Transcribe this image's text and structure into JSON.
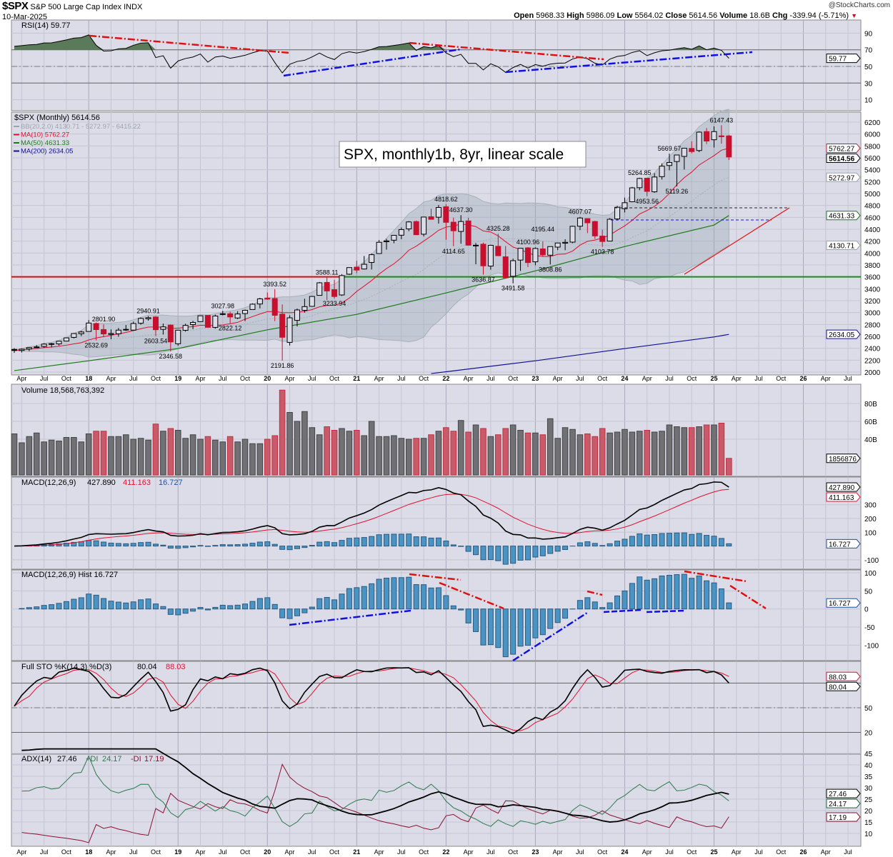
{
  "header": {
    "symbol": "$SPX",
    "name": "S&P 500 Large Cap Index INDX",
    "date": "10-Mar-2025",
    "watermark": "@StockCharts.com",
    "open_label": "Open",
    "open": "5968.33",
    "high_label": "High",
    "high": "5986.09",
    "low_label": "Low",
    "low": "5564.02",
    "close_label": "Close",
    "close": "5614.56",
    "volume_label": "Volume",
    "volume": "18.6B",
    "chg_label": "Chg",
    "chg": "-339.94 (-5.71%)",
    "chg_direction": "down"
  },
  "colors": {
    "panel_bg": "#dcdce8",
    "up": "#000000",
    "down": "#c8102e",
    "ma10": "#e0102e",
    "ma50": "#1a7a1a",
    "ma200": "#101090",
    "bb": "#9aa4ac",
    "hist": "#4a94c4",
    "vol_up": "#707075",
    "vol_down": "#c85a6a"
  },
  "title_box": "SPX, monthly1b, 8yr, linear scale",
  "x_axis": {
    "labels": [
      "Apr",
      "Jul",
      "Oct",
      "18",
      "Apr",
      "Jul",
      "Oct",
      "19",
      "Apr",
      "Jul",
      "Oct",
      "20",
      "Apr",
      "Jul",
      "Oct",
      "21",
      "Apr",
      "Jul",
      "Oct",
      "22",
      "Apr",
      "Jul",
      "Oct",
      "23",
      "Apr",
      "Jul",
      "Oct",
      "24",
      "Apr",
      "Jul",
      "Oct",
      "25",
      "Apr",
      "Jul",
      "Oct",
      "26",
      "Apr",
      "Jul"
    ]
  },
  "chart_data": [
    {
      "type": "candlestick",
      "title": "$SPX (Monthly) 5614.56",
      "start_month": "2017-03",
      "legend": [
        {
          "text": "BB(20,2.0) 4130.71 - 5272.97 - 6415.22",
          "color": "#9aa4ac"
        },
        {
          "text": "MA(10) 5762.27",
          "color": "#e0102e"
        },
        {
          "text": "MA(50) 4631.33",
          "color": "#1a7a1a"
        },
        {
          "text": "MA(200) 2634.05",
          "color": "#101090"
        }
      ],
      "ylim": [
        2000,
        6300
      ],
      "y_ticks": [
        2000,
        2200,
        2400,
        2600,
        2800,
        3000,
        3200,
        3400,
        3600,
        3800,
        4000,
        4200,
        4400,
        4600,
        4800,
        5000,
        5200,
        5400,
        5600,
        5800,
        6000,
        6200
      ],
      "ohlc": [
        [
          2381,
          2401,
          2322,
          2363
        ],
        [
          2363,
          2398,
          2329,
          2384
        ],
        [
          2388,
          2419,
          2353,
          2412
        ],
        [
          2415,
          2454,
          2405,
          2423
        ],
        [
          2431,
          2484,
          2407,
          2470
        ],
        [
          2477,
          2491,
          2417,
          2472
        ],
        [
          2474,
          2519,
          2446,
          2519
        ],
        [
          2521,
          2582,
          2520,
          2575
        ],
        [
          2583,
          2657,
          2566,
          2648
        ],
        [
          2645,
          2695,
          2605,
          2674
        ],
        [
          2683,
          2873,
          2683,
          2824
        ],
        [
          2816,
          2835,
          2532.69,
          2714
        ],
        [
          2715,
          2801.9,
          2586,
          2641
        ],
        [
          2633,
          2717,
          2553,
          2648
        ],
        [
          2643,
          2742,
          2595,
          2705
        ],
        [
          2718,
          2791,
          2692,
          2718
        ],
        [
          2705,
          2848,
          2699,
          2816
        ],
        [
          2821,
          2917,
          2796,
          2902
        ],
        [
          2896,
          2940.91,
          2864,
          2914
        ],
        [
          2926,
          2940,
          2603.54,
          2712
        ],
        [
          2718,
          2816,
          2631,
          2760
        ],
        [
          2790,
          2800,
          2346.58,
          2507
        ],
        [
          2476,
          2708,
          2444,
          2704
        ],
        [
          2702,
          2813,
          2681,
          2784
        ],
        [
          2798,
          2861,
          2722,
          2834
        ],
        [
          2848,
          2949,
          2848,
          2946
        ],
        [
          2953,
          2954,
          2750,
          2752
        ],
        [
          2751,
          2965,
          2729,
          2942
        ],
        [
          2971,
          3027.98,
          2952,
          2980
        ],
        [
          2980,
          3014,
          2822.12,
          2926
        ],
        [
          2909,
          3022,
          2891,
          2977
        ],
        [
          2983,
          3050,
          2856,
          3038
        ],
        [
          3051,
          3155,
          3051,
          3141
        ],
        [
          3144,
          3248,
          3070,
          3231
        ],
        [
          3244,
          3338,
          3214,
          3226
        ],
        [
          3236,
          3393.52,
          2855,
          2954
        ],
        [
          2974,
          3137,
          2191.86,
          2585
        ],
        [
          2499,
          2955,
          2447,
          2912
        ],
        [
          2869,
          3068,
          2767,
          3044
        ],
        [
          3038,
          3233,
          2999,
          3100
        ],
        [
          3105,
          3280,
          3101,
          3271
        ],
        [
          3289,
          3514,
          3284,
          3500
        ],
        [
          3507,
          3588.11,
          3209,
          3363
        ],
        [
          3385,
          3550,
          3233.94,
          3270
        ],
        [
          3296,
          3646,
          3280,
          3622
        ],
        [
          3645,
          3760,
          3633,
          3756
        ],
        [
          3764,
          3870,
          3662,
          3714
        ],
        [
          3732,
          3950,
          3725,
          3811
        ],
        [
          3842,
          3994,
          3723,
          3973
        ],
        [
          3992,
          4218,
          3992,
          4181
        ],
        [
          4191,
          4238,
          4057,
          4204
        ],
        [
          4216,
          4302,
          4165,
          4298
        ],
        [
          4300,
          4430,
          4233,
          4395
        ],
        [
          4406,
          4537,
          4367,
          4523
        ],
        [
          4529,
          4546,
          4306,
          4308
        ],
        [
          4317,
          4608,
          4279,
          4605
        ],
        [
          4610,
          4744,
          4561,
          4567
        ],
        [
          4602,
          4808,
          4495,
          4766
        ],
        [
          4778,
          4818.62,
          4223,
          4516
        ],
        [
          4519,
          4595,
          4114.65,
          4374
        ],
        [
          4363,
          4637.3,
          4157,
          4530
        ],
        [
          4540,
          4593,
          4129,
          4132
        ],
        [
          4130,
          4169,
          3811,
          4132
        ],
        [
          4149,
          4177,
          3636.87,
          3785
        ],
        [
          3781,
          4140,
          3721,
          4130
        ],
        [
          4113,
          4325.28,
          3955,
          3955
        ],
        [
          3937,
          4119,
          3585,
          3586
        ],
        [
          3610,
          3906,
          3491.58,
          3872
        ],
        [
          3882,
          4080,
          3699,
          4080
        ],
        [
          4087,
          4100.96,
          3764,
          3840
        ],
        [
          3853,
          4095,
          3795,
          4077
        ],
        [
          4070,
          4195.44,
          3943,
          3970
        ],
        [
          3964,
          4111,
          3808.86,
          4109
        ],
        [
          4100,
          4170,
          4049,
          4169
        ],
        [
          4166,
          4232,
          4048,
          4180
        ],
        [
          4184,
          4458,
          4166,
          4450
        ],
        [
          4451,
          4607.07,
          4386,
          4589
        ],
        [
          4579,
          4584,
          4335,
          4508
        ],
        [
          4530,
          4541,
          4238,
          4288
        ],
        [
          4285,
          4393,
          4103.78,
          4194
        ],
        [
          4201,
          4587,
          4197,
          4568
        ],
        [
          4573,
          4793,
          4547,
          4770
        ],
        [
          4745,
          4932,
          4683,
          4846
        ],
        [
          4862,
          5111,
          4853,
          5096
        ],
        [
          5098,
          5264.85,
          5056,
          5254
        ],
        [
          5258,
          5264,
          4953.56,
          5036
        ],
        [
          5029,
          5342,
          5012,
          5278
        ],
        [
          5284,
          5506,
          5235,
          5460
        ],
        [
          5471,
          5669.67,
          5390,
          5522
        ],
        [
          5538,
          5651,
          5119.26,
          5648
        ],
        [
          5624,
          5768,
          5403,
          5762
        ],
        [
          5758,
          5879,
          5675,
          5705
        ],
        [
          5723,
          6045,
          5696,
          6032
        ],
        [
          6041,
          6100,
          5832,
          5882
        ],
        [
          5904,
          6128,
          5774,
          6041
        ],
        [
          5969,
          6147.43,
          5838,
          5955
        ],
        [
          5968.33,
          5986.09,
          5564.02,
          5614.56
        ]
      ],
      "ma50_points": [
        [
          0,
          2025
        ],
        [
          10,
          2190
        ],
        [
          22,
          2395
        ],
        [
          34,
          2710
        ],
        [
          46,
          2970
        ],
        [
          58,
          3330
        ],
        [
          70,
          3700
        ],
        [
          82,
          4110
        ],
        [
          94,
          4470
        ],
        [
          96,
          4631.33
        ]
      ],
      "ma200_points": [
        [
          56,
          1975
        ],
        [
          70,
          2190
        ],
        [
          82,
          2395
        ],
        [
          94,
          2590
        ],
        [
          96,
          2634.05
        ]
      ],
      "price_labels": [
        {
          "text": "2801.90",
          "month": 12,
          "type": "high"
        },
        {
          "text": "2532.69",
          "month": 11,
          "type": "low"
        },
        {
          "text": "2940.91",
          "month": 18,
          "type": "high"
        },
        {
          "text": "2603.54",
          "month": 19,
          "type": "low"
        },
        {
          "text": "2346.58",
          "month": 21,
          "type": "low"
        },
        {
          "text": "3027.98",
          "month": 28,
          "type": "high"
        },
        {
          "text": "2822.12",
          "month": 29,
          "type": "low"
        },
        {
          "text": "3393.52",
          "month": 35,
          "type": "high"
        },
        {
          "text": "2191.86",
          "month": 36,
          "type": "low"
        },
        {
          "text": "3588.11",
          "month": 42,
          "type": "high"
        },
        {
          "text": "3233.94",
          "month": 43,
          "type": "low"
        },
        {
          "text": "4818.62",
          "month": 58,
          "type": "high"
        },
        {
          "text": "4114.65",
          "month": 59,
          "type": "low"
        },
        {
          "text": "4637.30",
          "month": 60,
          "type": "high"
        },
        {
          "text": "3636.87",
          "month": 63,
          "type": "low"
        },
        {
          "text": "4325.28",
          "month": 65,
          "type": "high"
        },
        {
          "text": "3491.58",
          "month": 67,
          "type": "low"
        },
        {
          "text": "4100.96",
          "month": 69,
          "type": "high"
        },
        {
          "text": "4195.44",
          "month": 71,
          "type": "high"
        },
        {
          "text": "3808.86",
          "month": 72,
          "type": "low"
        },
        {
          "text": "4607.07",
          "month": 76,
          "type": "high"
        },
        {
          "text": "4103.78",
          "month": 79,
          "type": "low"
        },
        {
          "text": "5264.85",
          "month": 84,
          "type": "high"
        },
        {
          "text": "4953.56",
          "month": 85,
          "type": "low"
        },
        {
          "text": "5669.67",
          "month": 88,
          "type": "high"
        },
        {
          "text": "5119.26",
          "month": 89,
          "type": "low"
        },
        {
          "text": "6147.43",
          "month": 95,
          "type": "high"
        }
      ],
      "levels": [
        {
          "value": 3600,
          "color": "#d01010"
        },
        {
          "value": 3600,
          "color": "#1a8a1a"
        }
      ],
      "tags": [
        {
          "text": "5762.27",
          "color": "#e0102e"
        },
        {
          "text": "5614.56",
          "color": "#000000"
        },
        {
          "text": "5272.97",
          "color": "#9aa4ac"
        },
        {
          "text": "4631.33",
          "color": "#1a7a1a"
        },
        {
          "text": "4130.71",
          "color": "#9aa4ac"
        },
        {
          "text": "2634.05",
          "color": "#101090"
        }
      ]
    },
    {
      "type": "line",
      "title": "RSI(14) 59.77",
      "ylim": [
        0,
        100
      ],
      "y_ticks": [
        10,
        30,
        50,
        70,
        90
      ],
      "tags": [
        {
          "text": "59.77",
          "color": "#000000"
        }
      ]
    },
    {
      "type": "bar",
      "title": "Volume 18,568,763,392",
      "unit": "B",
      "values": [
        46,
        36,
        43,
        47,
        37,
        39,
        38,
        42,
        42,
        37,
        46,
        49,
        49,
        43,
        43,
        45,
        40,
        41,
        39,
        57,
        49,
        52,
        50,
        41,
        45,
        40,
        43,
        39,
        37,
        43,
        37,
        40,
        35,
        35,
        40,
        44,
        95,
        70,
        60,
        71,
        53,
        45,
        54,
        50,
        52,
        49,
        50,
        44,
        60,
        43,
        43,
        44,
        41,
        40,
        41,
        41,
        45,
        49,
        53,
        49,
        61,
        48,
        56,
        52,
        43,
        45,
        52,
        56,
        50,
        47,
        47,
        45,
        63,
        41,
        53,
        51,
        45,
        46,
        43,
        52,
        47,
        48,
        51,
        48,
        49,
        50,
        48,
        49,
        56,
        54,
        53,
        53,
        54,
        56,
        56,
        58,
        18.57
      ],
      "y_ticks": [
        {
          "value": 40,
          "label": "40B"
        },
        {
          "value": 60,
          "label": "60B"
        },
        {
          "value": 80,
          "label": "80B"
        }
      ],
      "tags": [
        {
          "text": "1856876",
          "color": "#000000"
        }
      ]
    },
    {
      "type": "line",
      "title": "MACD(12,26,9)",
      "macd": "427.890",
      "signal": "411.163",
      "hist": "16.727",
      "y_ticks": [
        -100,
        100,
        200,
        300
      ],
      "tags": [
        {
          "text": "411.163",
          "color": "#e0102e"
        },
        {
          "text": "427.890",
          "color": "#000000"
        },
        {
          "text": "16.727",
          "color": "#2050a0"
        }
      ]
    },
    {
      "type": "bar",
      "title": "MACD(12,26,9) Hist 16.727",
      "y_ticks": [
        -100,
        -50,
        0,
        50,
        100
      ],
      "tags": [
        {
          "text": "16.727",
          "color": "#2050a0"
        }
      ]
    },
    {
      "type": "line",
      "title": "Full STO %K(14,3) %D(3)",
      "k": "80.04",
      "d": "88.03",
      "y_ticks": [
        20,
        50
      ],
      "tags": [
        {
          "text": "88.03",
          "color": "#e0102e"
        },
        {
          "text": "80.04",
          "color": "#000000"
        }
      ]
    },
    {
      "type": "line",
      "title": "ADX(14)",
      "adx": "27.46",
      "pdi_label": "+DI",
      "pdi": "24.17",
      "mdi_label": "-DI",
      "mdi": "17.19",
      "y_ticks": [
        10,
        15,
        20,
        25,
        30,
        35,
        40,
        45
      ],
      "tags": [
        {
          "text": "27.46",
          "color": "#000000"
        },
        {
          "text": "24.17",
          "color": "#1a6a3a"
        },
        {
          "text": "17.19",
          "color": "#8a1030"
        }
      ]
    }
  ]
}
